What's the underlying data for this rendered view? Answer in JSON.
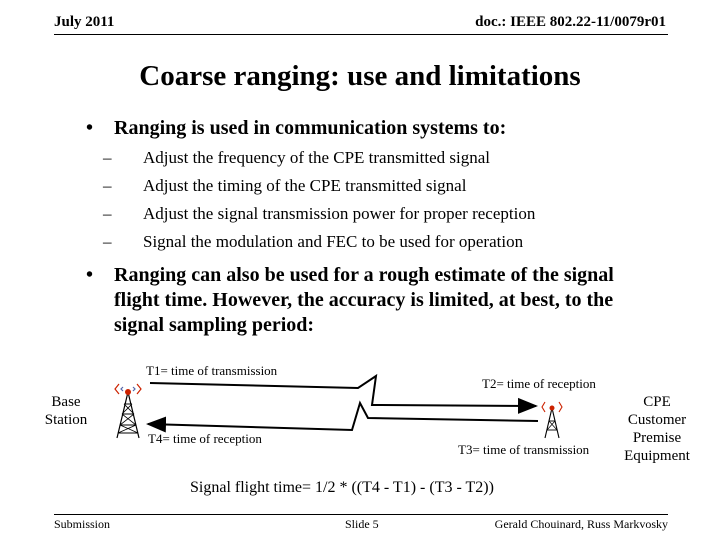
{
  "header": {
    "date": "July 2011",
    "doc_id": "doc.: IEEE 802.22-11/0079r01"
  },
  "slide_title": "Coarse ranging: use and limitations",
  "bullets": [
    {
      "marker": "•",
      "text": "Ranging is used in communication systems to:",
      "subitems": [
        "Adjust the frequency of the CPE transmitted signal",
        "Adjust the timing of the CPE transmitted signal",
        "Adjust the signal transmission power for proper reception",
        "Signal the modulation and FEC to be used for operation"
      ]
    },
    {
      "marker": "•",
      "text": "Ranging can also be used for a rough estimate of the signal flight time.  However, the accuracy is limited, at best, to the signal sampling period:"
    }
  ],
  "sub_marker": "–",
  "diagram": {
    "base_station_label": "Base Station",
    "cpe_label": "CPE Customer Premise Equipment",
    "t1": "T1= time of transmission",
    "t2": "T2= time of reception",
    "t3": "T3= time of transmission",
    "t4": "T4= time of reception",
    "formula": "Signal flight time= 1/2 * ((T4 - T1) - (T3 - T2))"
  },
  "footer": {
    "left": "Submission",
    "center": "Slide 5",
    "right": "Gerald Chouinard, Russ Markvosky"
  }
}
